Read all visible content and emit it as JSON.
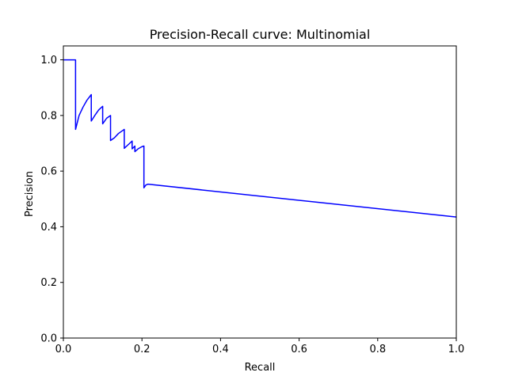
{
  "chart_data": {
    "type": "line",
    "title": "Precision-Recall curve: Multinomial",
    "xlabel": "Recall",
    "ylabel": "Precision",
    "xlim": [
      0.0,
      1.0
    ],
    "ylim": [
      0.0,
      1.05
    ],
    "xticks": [
      0.0,
      0.2,
      0.4,
      0.6,
      0.8,
      1.0
    ],
    "xtick_labels": [
      "0.0",
      "0.2",
      "0.4",
      "0.6",
      "0.8",
      "1.0"
    ],
    "yticks": [
      0.0,
      0.2,
      0.4,
      0.6,
      0.8,
      1.0
    ],
    "ytick_labels": [
      "0.0",
      "0.2",
      "0.4",
      "0.6",
      "0.8",
      "1.0"
    ],
    "grid": false,
    "series": [
      {
        "color": "#0000ff",
        "x": [
          0.0,
          0.031,
          0.031,
          0.04,
          0.05,
          0.06,
          0.071,
          0.071,
          0.08,
          0.09,
          0.1,
          0.1,
          0.11,
          0.12,
          0.12,
          0.13,
          0.14,
          0.15,
          0.155,
          0.155,
          0.165,
          0.175,
          0.175,
          0.182,
          0.182,
          0.19,
          0.2,
          0.205,
          0.205,
          0.21,
          0.215,
          1.0
        ],
        "y": [
          1.0,
          1.0,
          0.75,
          0.8,
          0.83,
          0.855,
          0.875,
          0.78,
          0.8,
          0.82,
          0.833,
          0.77,
          0.79,
          0.8,
          0.71,
          0.72,
          0.735,
          0.745,
          0.75,
          0.682,
          0.695,
          0.708,
          0.68,
          0.69,
          0.67,
          0.68,
          0.688,
          0.69,
          0.54,
          0.55,
          0.553,
          0.435
        ]
      }
    ]
  }
}
